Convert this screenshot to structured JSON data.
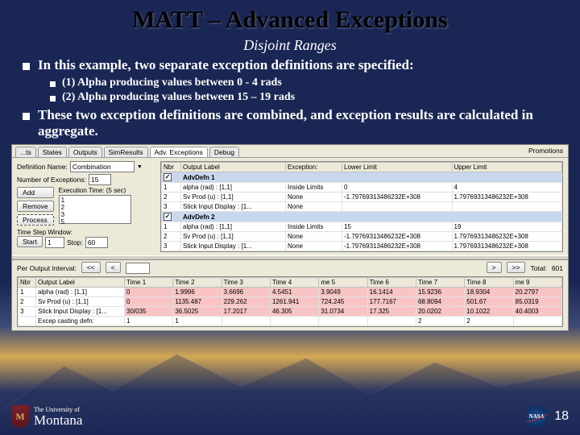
{
  "title": "MATT – Advanced Exceptions",
  "subtitle": "Disjoint Ranges",
  "bullets": {
    "b1": "In this example, two separate exception definitions are specified:",
    "b1a": "(1) Alpha producing values between 0 - 4 rads",
    "b1b": "(2) Alpha producing values between 15 – 19 rads",
    "b2": "These two exception definitions are combined, and exception results are calculated in aggregate."
  },
  "ui": {
    "tabs": [
      "...ts",
      "States",
      "Outputs",
      "SimResults",
      "Adv. Exceptions",
      "Debug"
    ],
    "active_tab": 4,
    "promo": "Promotions",
    "defn_label": "Definition Name:",
    "defn_value": "Combination",
    "num_label": "Number of Exceptions:",
    "num_value": "15",
    "btn_add": "Add",
    "btn_remove": "Remove",
    "btn_process": "Process",
    "exec_label": "Execution Time: (5 sec)",
    "list_items": [
      "1",
      "2",
      "3",
      "5",
      "10"
    ],
    "tsw_label": "Time Step Window:",
    "start_label": "Start",
    "start_value": "1",
    "stop_label": "Stop:",
    "stop_value": "60",
    "grid_headers": [
      "Nbr",
      "Output Label",
      "Exception:",
      "Lower Limit",
      "Upper Limit"
    ],
    "grid_rows": [
      {
        "group": true,
        "nbr": "",
        "check": true,
        "label": "AdvDefn 1"
      },
      {
        "nbr": "1",
        "label": "alpha (rad) : [1,1]",
        "exc": "Inside Limits",
        "low": "0",
        "up": "4"
      },
      {
        "nbr": "2",
        "label": "Sv Prod (u) : [1,1]",
        "exc": "None",
        "low": "-1.79769313486232E+308",
        "up": "1.79769313486232E+308"
      },
      {
        "nbr": "3",
        "label": "Stick Input Display : [1...",
        "exc": "None",
        "low": "",
        "up": ""
      },
      {
        "group": true,
        "nbr": "",
        "check": true,
        "label": "AdvDefn 2"
      },
      {
        "nbr": "1",
        "label": "alpha (rad) : [1,1]",
        "exc": "Inside Limits",
        "low": "15",
        "up": "19"
      },
      {
        "nbr": "2",
        "label": "Sv Prod (u) : [1,1]",
        "exc": "None",
        "low": "-1.79769313486232E+308",
        "up": "1.79769313486232E+308"
      },
      {
        "nbr": "3",
        "label": "Stick Input Display : [1...",
        "exc": "None",
        "low": "-1.79769313486232E+308",
        "up": "1.79769313486232E+308"
      }
    ],
    "out_interval_label": "Per Output Interval:",
    "out_nav1": "<<",
    "out_nav2": "<",
    "out_nav3": ">",
    "out_nav4": ">>",
    "out_total_label": "Total:",
    "out_total_value": "601",
    "out_headers": [
      "Nbr",
      "Output Label",
      "Time 1",
      "Time 2",
      "Time 3",
      "Time 4",
      "me 5",
      "Time 6",
      "Time 7",
      "Time 8",
      "me 9"
    ],
    "out_rows": [
      {
        "nbr": "1",
        "label": "alpha (rad) : [1,1]",
        "v": [
          "0",
          "1.9996",
          "3.6696",
          "4.5451",
          "3.9049",
          "16.1414",
          "15.9236",
          "18.9304",
          "20.2797"
        ]
      },
      {
        "nbr": "2",
        "label": "Sv Prod (u) : [1,1]",
        "v": [
          "0",
          "1135.487",
          "229.262",
          "1261.941",
          "724.245",
          "177.7167",
          "68.8094",
          "501.67",
          "85.0319"
        ]
      },
      {
        "nbr": "3",
        "label": "Stick Input Display : [1...",
        "v": [
          "30/035",
          "36.5025",
          "17.2017",
          "46.305",
          "31.0734",
          "17.325",
          "20.0202",
          "10.1022",
          "40.4003"
        ]
      },
      {
        "nbr": "",
        "label": "Excep casting defn:",
        "v": [
          "1",
          "1",
          "",
          "",
          "",
          "",
          "2",
          "2",
          ""
        ]
      }
    ]
  },
  "footer": {
    "univ_top": "The University of",
    "univ_name": "Montana",
    "nasa": "NASA",
    "page": "18"
  }
}
